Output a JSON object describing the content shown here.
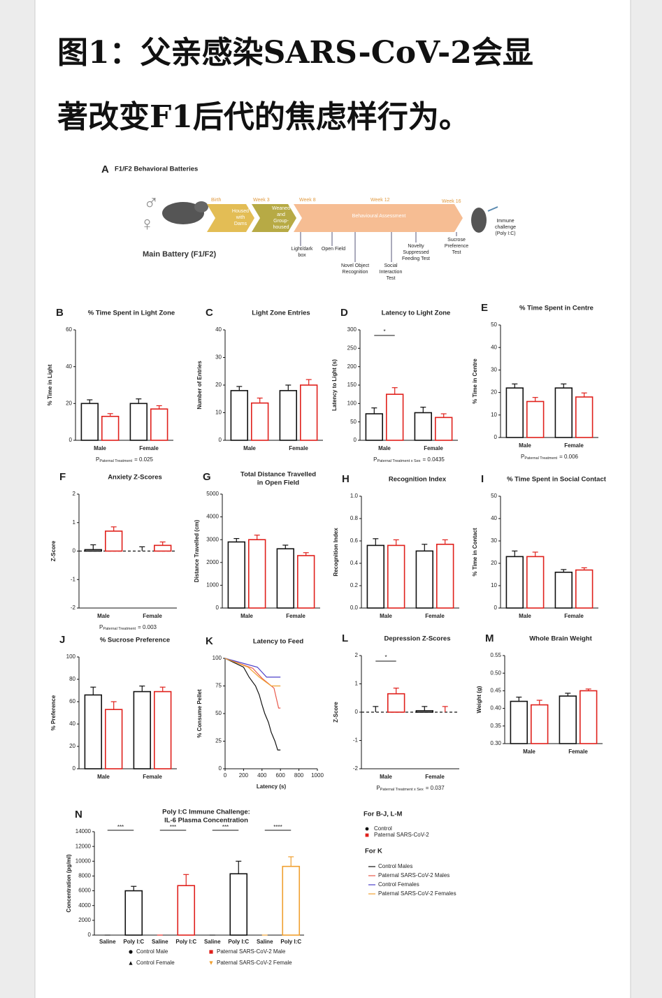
{
  "title_lines": [
    "图1：父亲感染SARS-CoV-2会显",
    "著改变F1后代的焦虑样行为。"
  ],
  "panel_a": {
    "letter": "A",
    "title": "F1/F2 Behavioral Batteries",
    "battery": "Main Battery (F1/F2)",
    "weeks": [
      "Birth",
      "Week 3",
      "Week 8",
      "Week 12",
      "Week 16"
    ],
    "housed": [
      "Housed",
      "with",
      "Dams"
    ],
    "weaned": [
      "Weaned",
      "and",
      "Group-",
      "housed"
    ],
    "assessment": "Behavioural Assessment",
    "tests": [
      [
        "Light/dark",
        "box"
      ],
      [
        "Open Field"
      ],
      [
        "Novel Object",
        "Recognition"
      ],
      [
        "Social",
        "Interaction",
        "Test"
      ],
      [
        "Novelty",
        "Suppressed",
        "Feeding Test"
      ],
      [
        "Sucrose",
        "Preference",
        "Test"
      ]
    ],
    "immune": [
      "Immune",
      "challenge",
      "(Poly I:C)"
    ]
  },
  "legend_bars": {
    "title": "For B-J, L-M",
    "items": [
      {
        "name": "Control",
        "color": "#111111",
        "marker": "circle"
      },
      {
        "name": "Paternal SARS-CoV-2",
        "color": "#e0201b",
        "marker": "square"
      }
    ]
  },
  "legend_k": {
    "title": "For K"
  },
  "chart_data": [
    {
      "type": "bar",
      "panel": "B",
      "title": "% Time Spent  in Light Zone",
      "ylabel": "% Time in Light",
      "categories": [
        "Male",
        "Female"
      ],
      "ylim": [
        0,
        60
      ],
      "yticks": [
        0,
        20,
        40,
        60
      ],
      "series": [
        {
          "color": "#111111",
          "values": [
            20,
            20
          ],
          "errors": [
            2,
            2.5
          ]
        },
        {
          "color": "#e0201b",
          "values": [
            13,
            17
          ],
          "errors": [
            1.5,
            1.8
          ]
        }
      ],
      "annotation": {
        "p": "P",
        "sub": "Paternal Treatment",
        "rest": "= 0.025"
      }
    },
    {
      "type": "bar",
      "panel": "C",
      "title": "Light Zone Entries",
      "ylabel": "Number of Entries",
      "categories": [
        "Male",
        "Female"
      ],
      "ylim": [
        0,
        40
      ],
      "yticks": [
        0,
        10,
        20,
        30,
        40
      ],
      "series": [
        {
          "color": "#111111",
          "values": [
            18,
            18
          ],
          "errors": [
            1.5,
            2
          ]
        },
        {
          "color": "#e0201b",
          "values": [
            13.5,
            20
          ],
          "errors": [
            1.8,
            2
          ]
        }
      ]
    },
    {
      "type": "bar",
      "panel": "D",
      "title": "Latency to Light Zone",
      "ylabel": "Latency to Light (s)",
      "categories": [
        "Male",
        "Female"
      ],
      "ylim": [
        0,
        300
      ],
      "yticks": [
        0,
        50,
        100,
        150,
        200,
        250,
        300
      ],
      "series": [
        {
          "color": "#111111",
          "values": [
            72,
            75
          ],
          "errors": [
            16,
            15
          ]
        },
        {
          "color": "#e0201b",
          "values": [
            125,
            62
          ],
          "errors": [
            18,
            10
          ]
        }
      ],
      "significance": {
        "label": "*",
        "category": 0
      },
      "annotation": {
        "p": "P",
        "sub": "Paternal Treatment x Sex",
        "rest": "= 0.0435"
      }
    },
    {
      "type": "bar",
      "panel": "E",
      "title": "% Time Spent in Centre",
      "ylabel": "% Time in Centre",
      "categories": [
        "Male",
        "Female"
      ],
      "ylim": [
        0,
        50
      ],
      "yticks": [
        0,
        10,
        20,
        30,
        40,
        50
      ],
      "series": [
        {
          "color": "#111111",
          "values": [
            22,
            22
          ],
          "errors": [
            1.8,
            1.8
          ]
        },
        {
          "color": "#e0201b",
          "values": [
            16,
            18
          ],
          "errors": [
            1.8,
            1.8
          ]
        }
      ],
      "annotation": {
        "p": "P",
        "sub": "Paternal Treatment",
        "rest": "= 0.006"
      }
    },
    {
      "type": "bar",
      "panel": "F",
      "title": "Anxiety Z-Scores",
      "ylabel": "Z-Score",
      "categories": [
        "Male",
        "Female"
      ],
      "ylim": [
        -2,
        2
      ],
      "yticks": [
        -2,
        -1,
        0,
        1,
        2
      ],
      "zero_line": true,
      "series": [
        {
          "color": "#111111",
          "values": [
            0.05,
            0.0
          ],
          "errors": [
            0.17,
            0.15
          ]
        },
        {
          "color": "#e0201b",
          "values": [
            0.7,
            0.2
          ],
          "errors": [
            0.15,
            0.12
          ]
        }
      ],
      "annotation": {
        "p": "P",
        "sub": "Paternal Treatment",
        "rest": "= 0.003"
      }
    },
    {
      "type": "bar",
      "panel": "G",
      "title": [
        "Total Distance Travelled",
        "in Open Field"
      ],
      "ylabel": "Distance Travelled (cm)",
      "categories": [
        "Male",
        "Female"
      ],
      "ylim": [
        0,
        5000
      ],
      "yticks": [
        0,
        1000,
        2000,
        3000,
        4000,
        5000
      ],
      "series": [
        {
          "color": "#111111",
          "values": [
            2900,
            2600
          ],
          "errors": [
            150,
            160
          ]
        },
        {
          "color": "#e0201b",
          "values": [
            3000,
            2300
          ],
          "errors": [
            200,
            130
          ]
        }
      ]
    },
    {
      "type": "bar",
      "panel": "H",
      "title": "Recognition Index",
      "ylabel": "Recognition Index",
      "categories": [
        "Male",
        "Female"
      ],
      "ylim": [
        0,
        1
      ],
      "yticks": [
        {
          "value": 0,
          "label": "0.0"
        },
        0.2,
        0.4,
        0.6,
        0.8,
        {
          "value": 1,
          "label": "1.0"
        }
      ],
      "series": [
        {
          "color": "#111111",
          "values": [
            0.56,
            0.51
          ],
          "errors": [
            0.06,
            0.06
          ]
        },
        {
          "color": "#e0201b",
          "values": [
            0.56,
            0.57
          ],
          "errors": [
            0.05,
            0.04
          ]
        }
      ]
    },
    {
      "type": "bar",
      "panel": "I",
      "title": "% Time Spent in Social Contact",
      "ylabel": "% Time in Contact",
      "categories": [
        "Male",
        "Female"
      ],
      "ylim": [
        0,
        50
      ],
      "yticks": [
        0,
        10,
        20,
        30,
        40,
        50
      ],
      "series": [
        {
          "color": "#111111",
          "values": [
            23,
            16
          ],
          "errors": [
            2.5,
            1.2
          ]
        },
        {
          "color": "#e0201b",
          "values": [
            23,
            17
          ],
          "errors": [
            2,
            1
          ]
        }
      ]
    },
    {
      "type": "bar",
      "panel": "J",
      "title": "% Sucrose Preference",
      "ylabel": "% Preference",
      "categories": [
        "Male",
        "Female"
      ],
      "ylim": [
        0,
        100
      ],
      "yticks": [
        0,
        20,
        40,
        60,
        80,
        100
      ],
      "series": [
        {
          "color": "#111111",
          "values": [
            66,
            69
          ],
          "errors": [
            7,
            5
          ]
        },
        {
          "color": "#e0201b",
          "values": [
            53,
            69
          ],
          "errors": [
            7,
            4
          ]
        }
      ]
    },
    {
      "type": "line",
      "panel": "K",
      "title": "Latency to Feed",
      "xlabel": "Latency (s)",
      "ylabel": "% Consume Pellet",
      "xlim": [
        0,
        1000
      ],
      "xticks": [
        0,
        200,
        400,
        600,
        800,
        1000
      ],
      "ylim": [
        0,
        100
      ],
      "yticks": [
        0,
        25,
        50,
        75,
        100
      ],
      "series": [
        {
          "name": "Control Males",
          "color": "#111111",
          "x": [
            0,
            200,
            260,
            330,
            370,
            400,
            430,
            470,
            500,
            540,
            570,
            600
          ],
          "values": [
            100,
            92,
            83,
            75,
            67,
            58,
            50,
            42,
            33,
            25,
            17,
            17
          ]
        },
        {
          "name": "Paternal SARS-CoV-2 Males",
          "color": "#e8584a",
          "x": [
            0,
            300,
            400,
            530,
            580,
            600
          ],
          "values": [
            100,
            91,
            82,
            73,
            55,
            55
          ]
        },
        {
          "name": "Control Females",
          "color": "#4b3fc8",
          "x": [
            0,
            350,
            450,
            600
          ],
          "values": [
            100,
            92,
            83,
            83
          ]
        },
        {
          "name": "Paternal SARS-CoV-2 Females",
          "color": "#f0a030",
          "x": [
            0,
            250,
            370,
            500,
            600
          ],
          "values": [
            100,
            92,
            83,
            75,
            75
          ]
        }
      ]
    },
    {
      "type": "bar",
      "panel": "L",
      "title": "Depression Z-Scores",
      "ylabel": "Z-Score",
      "categories": [
        "Male",
        "Female"
      ],
      "ylim": [
        -2,
        2
      ],
      "yticks": [
        -2,
        -1,
        0,
        1,
        2
      ],
      "zero_line": true,
      "series": [
        {
          "color": "#111111",
          "values": [
            0.0,
            0.05
          ],
          "errors": [
            0.2,
            0.15
          ]
        },
        {
          "color": "#e0201b",
          "values": [
            0.65,
            0.0
          ],
          "errors": [
            0.2,
            0.2
          ]
        }
      ],
      "significance": {
        "label": "*",
        "category": 0
      },
      "annotation": {
        "p": "P",
        "sub": "Paternal Treatment x Sex",
        "rest": "= 0.037"
      }
    },
    {
      "type": "bar",
      "panel": "M",
      "title": "Whole Brain Weight",
      "ylabel": "Weight (g)",
      "categories": [
        "Male",
        "Female"
      ],
      "ylim": [
        0.3,
        0.55
      ],
      "yticks": [
        {
          "value": 0.3,
          "label": "0.30"
        },
        0.35,
        {
          "value": 0.4,
          "label": "0.40"
        },
        0.45,
        {
          "value": 0.5,
          "label": "0.50"
        },
        0.55
      ],
      "series": [
        {
          "color": "#111111",
          "values": [
            0.42,
            0.435
          ],
          "errors": [
            0.012,
            0.008
          ]
        },
        {
          "color": "#e0201b",
          "values": [
            0.41,
            0.45
          ],
          "errors": [
            0.013,
            0.005
          ]
        }
      ]
    },
    {
      "type": "bar",
      "panel": "N",
      "title": [
        "Poly I:C Immune Challenge:",
        "IL-6 Plasma Concentration"
      ],
      "ylabel": "Concentration (pg/ml)",
      "categories": [
        "Saline",
        "Poly I:C"
      ],
      "ylim": [
        0,
        14000
      ],
      "yticks": [
        0,
        2000,
        4000,
        6000,
        8000,
        10000,
        12000,
        14000
      ],
      "series": [
        {
          "name": "Control Male",
          "color": "#111111",
          "marker": "circle",
          "values": [
            0,
            6000
          ],
          "errors": [
            0,
            600
          ]
        },
        {
          "name": "Paternal SARS-CoV-2 Male",
          "color": "#e0201b",
          "marker": "square",
          "values": [
            0,
            6700
          ],
          "errors": [
            0,
            1500
          ]
        },
        {
          "name": "Control Female",
          "color": "#111111",
          "marker": "triangle",
          "values": [
            0,
            8300
          ],
          "errors": [
            0,
            1700
          ]
        },
        {
          "name": "Paternal SARS-CoV-2 Female",
          "color": "#f0a030",
          "marker": "triangle-down",
          "values": [
            0,
            9300
          ],
          "errors": [
            0,
            1300
          ]
        }
      ],
      "significance": [
        "***",
        "***",
        "***",
        "****"
      ]
    }
  ]
}
